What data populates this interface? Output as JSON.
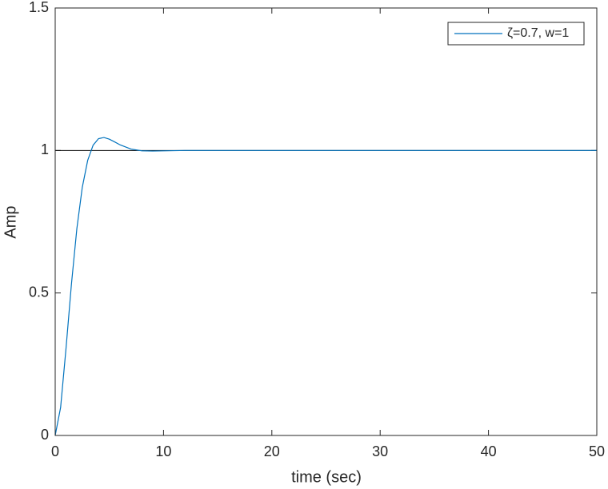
{
  "chart_data": {
    "type": "line",
    "x_label": "time (sec)",
    "y_label": "Amp",
    "x": [
      0,
      0.5,
      1,
      1.5,
      2,
      2.5,
      3,
      3.5,
      4,
      4.5,
      5,
      5.5,
      6,
      7,
      8,
      9,
      10,
      12,
      15,
      20,
      30,
      40,
      50
    ],
    "series": [
      {
        "name": "ζ=0.7, w=1",
        "color": "#0072bd",
        "values": [
          0,
          0.0985,
          0.306,
          0.5313,
          0.726,
          0.8707,
          0.9653,
          1.0185,
          1.0416,
          1.0456,
          1.0397,
          1.0298,
          1.0196,
          1.0049,
          0.9988,
          0.9979,
          0.9987,
          1.0001,
          1,
          1,
          1,
          1,
          1
        ]
      }
    ],
    "reference_line": {
      "value": 1,
      "color": "#000000"
    },
    "xlim": [
      0,
      50
    ],
    "ylim": [
      0,
      1.5
    ],
    "xticks": [
      0,
      10,
      20,
      30,
      40,
      50
    ],
    "yticks": [
      0,
      0.5,
      1,
      1.5
    ],
    "legend": "top-right"
  }
}
